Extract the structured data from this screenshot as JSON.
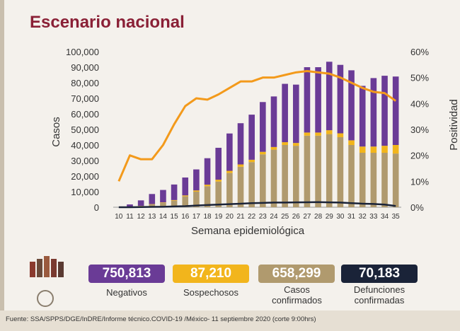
{
  "title": "Escenario nacional",
  "chart_data": {
    "type": "bar",
    "stacked": true,
    "xlabel": "Semana epidemiológica",
    "ylabel_left": "Casos",
    "ylabel_right": "Positividad",
    "ylim": [
      0,
      100000
    ],
    "y2lim": [
      0,
      60
    ],
    "yticks": [
      "0",
      "10,000",
      "20,000",
      "30,000",
      "40,000",
      "50,000",
      "60,000",
      "70,000",
      "80,000",
      "90,000",
      "100,000"
    ],
    "y2ticks": [
      "0%",
      "10%",
      "20%",
      "30%",
      "40%",
      "50%",
      "60%"
    ],
    "categories": [
      "10",
      "11",
      "12",
      "13",
      "14",
      "15",
      "16",
      "17",
      "18",
      "19",
      "20",
      "21",
      "22",
      "23",
      "24",
      "25",
      "26",
      "27",
      "28",
      "29",
      "30",
      "31",
      "32",
      "33",
      "34",
      "35"
    ],
    "series": [
      {
        "name": "Casos confirmados",
        "color": "#b09a6e",
        "values": [
          0,
          300,
          800,
          1800,
          2800,
          4200,
          7000,
          10000,
          13500,
          16500,
          22000,
          26000,
          29000,
          34000,
          37000,
          40000,
          39500,
          46000,
          46000,
          47000,
          45000,
          40000,
          35000,
          35000,
          35000,
          34500
        ]
      },
      {
        "name": "Sospechosos",
        "color": "#f2b51c",
        "values": [
          0,
          0,
          100,
          200,
          300,
          400,
          600,
          800,
          1000,
          1200,
          1400,
          1500,
          1500,
          1600,
          1700,
          1800,
          1800,
          2000,
          2000,
          2500,
          2500,
          3000,
          4000,
          4000,
          4500,
          5500
        ]
      },
      {
        "name": "Negativos",
        "color": "#6a3b96",
        "values": [
          0,
          1500,
          3500,
          6500,
          8000,
          10000,
          11500,
          13500,
          17000,
          20500,
          24000,
          26500,
          29000,
          32000,
          32500,
          37500,
          37500,
          42000,
          42000,
          44000,
          44000,
          45000,
          39000,
          44000,
          45000,
          44000
        ]
      }
    ],
    "lines": [
      {
        "name": "Positividad",
        "axis": "right",
        "color": "#f39a1b",
        "values": [
          10,
          20,
          18.5,
          18.5,
          24,
          32,
          39,
          42,
          41.5,
          43.5,
          46,
          48.5,
          48.5,
          50,
          50,
          51,
          52,
          52.5,
          52,
          51.5,
          50,
          48,
          46,
          44.5,
          44,
          41
        ]
      },
      {
        "name": "Defunciones confirmadas",
        "axis": "left",
        "color": "#1a2338",
        "values": [
          0,
          0,
          100,
          200,
          300,
          500,
          700,
          1100,
          1400,
          1700,
          2000,
          2300,
          2600,
          2800,
          3000,
          3000,
          3100,
          3200,
          3300,
          3100,
          3000,
          2600,
          2300,
          2100,
          1700,
          800
        ]
      }
    ]
  },
  "summary": [
    {
      "value": "750,813",
      "label": "Negativos",
      "color": "#6a3b96"
    },
    {
      "value": "87,210",
      "label": "Sospechosos",
      "color": "#f2b51c"
    },
    {
      "value": "658,299",
      "label": "Casos confirmados",
      "color": "#b09a6e"
    },
    {
      "value": "70,183",
      "label": "Defunciones confirmadas",
      "color": "#1a2338"
    }
  ],
  "footer": "Fuente: SSA/SPPS/DGE/InDRE/Informe técnico.COVID-19 /México- 11 septiembre 2020 (corte 9:00hrs)"
}
